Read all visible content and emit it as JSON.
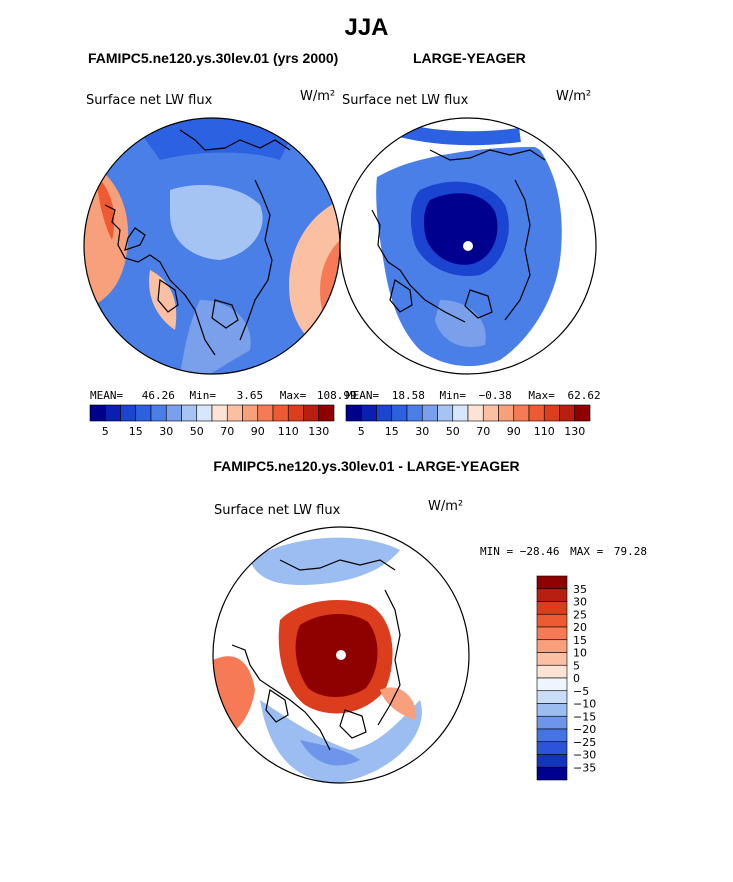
{
  "chart_data": {
    "type": "heatmap",
    "title": "JJA",
    "panels": [
      {
        "subtitle": "FAMIPC5.ne120.ys.30lev.01 (yrs 2000)",
        "field_label": "Surface net LW flux",
        "units": "W/m²",
        "stats": {
          "mean_label": "MEAN=",
          "mean": "46.26",
          "min_label": "Min=",
          "min": "3.65",
          "max_label": "Max=",
          "max": "108.99"
        },
        "colorbar": {
          "orientation": "horizontal",
          "tick_labels": [
            "5",
            "15",
            "30",
            "50",
            "70",
            "90",
            "110",
            "130"
          ]
        }
      },
      {
        "subtitle": "LARGE-YEAGER",
        "field_label": "Surface net LW flux",
        "units": "W/m²",
        "stats": {
          "mean_label": "MEAN=",
          "mean": "18.58",
          "min_label": "Min=",
          "min": "−0.38",
          "max_label": "Max=",
          "max": "62.62"
        },
        "colorbar": {
          "orientation": "horizontal",
          "tick_labels": [
            "5",
            "15",
            "30",
            "50",
            "70",
            "90",
            "110",
            "130"
          ]
        }
      },
      {
        "subtitle": "FAMIPC5.ne120.ys.30lev.01 - LARGE-YEAGER",
        "field_label": "Surface net LW flux",
        "units": "W/m²",
        "stats": {
          "min_label": "MIN =",
          "min": "−28.46",
          "max_label": "MAX =",
          "max": "79.28"
        },
        "colorbar": {
          "orientation": "vertical",
          "tick_labels": [
            "35",
            "30",
            "25",
            "20",
            "15",
            "10",
            "5",
            "0",
            "−5",
            "−10",
            "−15",
            "−20",
            "−25",
            "−30",
            "−35"
          ]
        }
      }
    ],
    "abs_colors": [
      "#00008f",
      "#0a1fb0",
      "#1b45d0",
      "#2c62e2",
      "#4a7fe8",
      "#7aa0ec",
      "#a5c3f3",
      "#d6e6fb",
      "#fde3d4",
      "#fbbfa2",
      "#f8a07c",
      "#f57a55",
      "#ee5a31",
      "#dc3d1c",
      "#b81f10",
      "#8f0000"
    ],
    "diff_colors": [
      "#8f0000",
      "#b81f10",
      "#dc3d1c",
      "#ee5a31",
      "#f57a55",
      "#f8a07c",
      "#fbbfa2",
      "#fde3d4",
      "#eef5fe",
      "#c9ddf8",
      "#9bbdf1",
      "#6f95ea",
      "#4574e4",
      "#2a55d6",
      "#1435b8",
      "#00008f"
    ]
  }
}
